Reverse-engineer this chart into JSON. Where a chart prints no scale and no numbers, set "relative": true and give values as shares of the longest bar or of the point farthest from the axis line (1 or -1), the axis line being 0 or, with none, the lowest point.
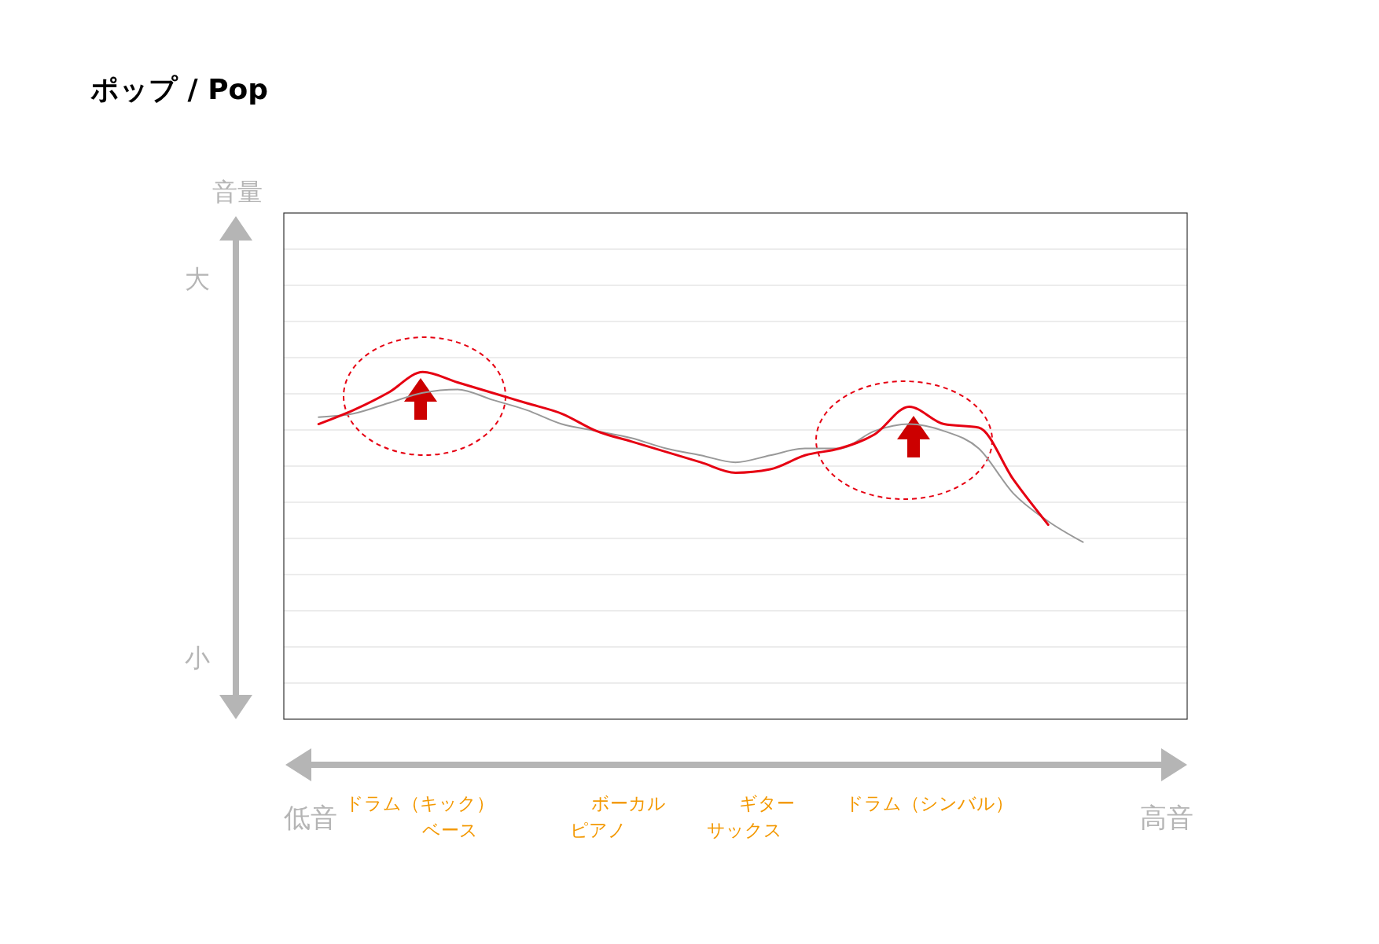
{
  "chart_data": {
    "type": "line",
    "title": "ポップ / Pop",
    "relative": true,
    "grid": "y",
    "categories": [
      null,
      null,
      null,
      null,
      null,
      null,
      null,
      null,
      null,
      null,
      null,
      null,
      null,
      null,
      null,
      null,
      null,
      null,
      null,
      null,
      null,
      null,
      null,
      null,
      null,
      null,
      null
    ],
    "series": [
      {
        "color": "#999999",
        "values": [
          null,
          0.87,
          0.88,
          0.91,
          0.94,
          0.95,
          0.92,
          0.89,
          0.85,
          0.83,
          0.81,
          0.78,
          0.76,
          0.74,
          0.76,
          0.78,
          0.78,
          0.83,
          0.85,
          0.83,
          0.78,
          0.65,
          0.57,
          0.51,
          null,
          null,
          null
        ]
      },
      {
        "color": "#e60012",
        "values": [
          null,
          0.85,
          0.89,
          0.94,
          1,
          0.97,
          0.94,
          0.91,
          0.88,
          0.83,
          0.8,
          0.77,
          0.74,
          0.71,
          0.72,
          0.76,
          0.78,
          0.82,
          0.9,
          0.85,
          0.84,
          0.69,
          0.56,
          null,
          null,
          null,
          null
        ]
      }
    ],
    "annotations": [
      "音量",
      "大",
      "小",
      "低音",
      "高音",
      "ドラム（キック）",
      "ベース",
      "ボーカル",
      "ピアノ",
      "ギター",
      "サックス",
      "ドラム（シンバル）"
    ]
  }
}
